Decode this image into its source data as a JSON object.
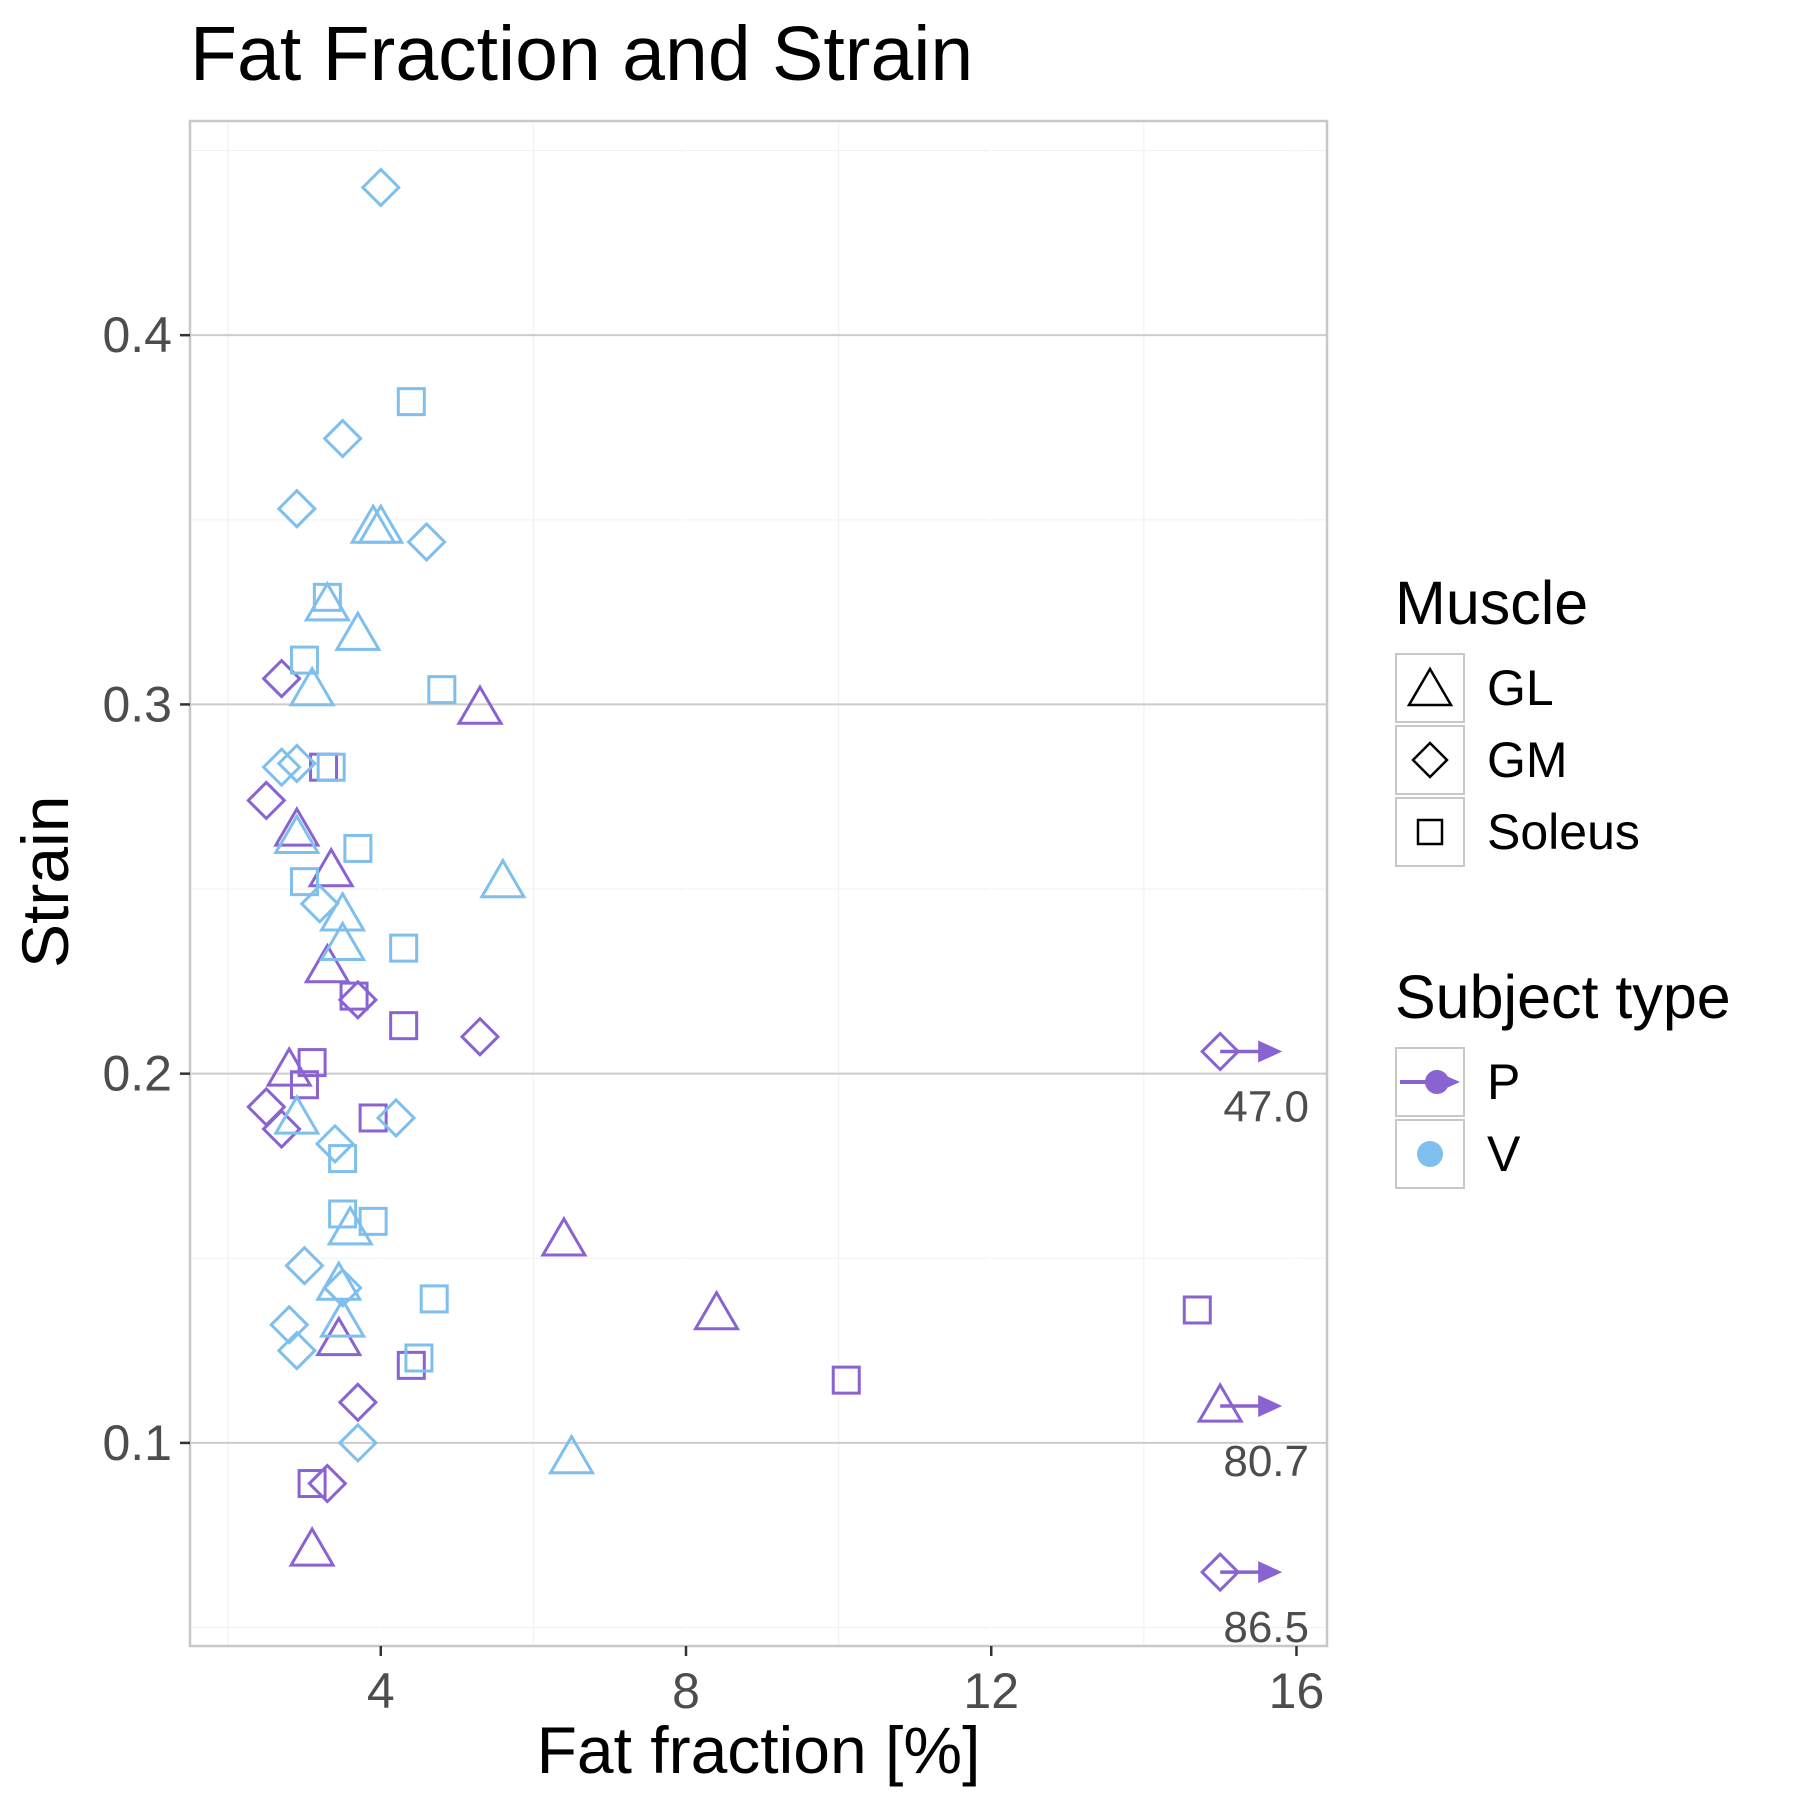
{
  "chart_data": {
    "type": "scatter",
    "title": "Fat Fraction and Strain",
    "xlabel": "Fat fraction [%]",
    "ylabel": "Strain",
    "xlim": [
      1.5,
      16.4
    ],
    "ylim": [
      0.045,
      0.458
    ],
    "x_ticks": [
      4,
      8,
      12,
      16
    ],
    "x_tick_labels": [
      "4",
      "8",
      "12",
      "16"
    ],
    "y_ticks": [
      0.1,
      0.2,
      0.3,
      0.4
    ],
    "y_tick_labels": [
      "0.1",
      "0.2",
      "0.3",
      "0.4"
    ],
    "grid": true,
    "legend_position": "right",
    "colors": {
      "P": "#8a63d2",
      "V": "#7fbfed"
    },
    "legend": {
      "muscle_title": "Muscle",
      "muscle_items": [
        {
          "label": "GL",
          "shape": "triangle"
        },
        {
          "label": "GM",
          "shape": "diamond"
        },
        {
          "label": "Soleus",
          "shape": "square"
        }
      ],
      "subject_title": "Subject type",
      "subject_items": [
        {
          "label": "P",
          "color": "#8a63d2"
        },
        {
          "label": "V",
          "color": "#7fbfed"
        }
      ]
    },
    "series": [
      {
        "name": "P",
        "color": "#8a63d2",
        "points": [
          {
            "x": 2.7,
            "y": 0.307,
            "muscle": "GM"
          },
          {
            "x": 2.5,
            "y": 0.274,
            "muscle": "GM"
          },
          {
            "x": 2.9,
            "y": 0.266,
            "muscle": "GL"
          },
          {
            "x": 3.25,
            "y": 0.283,
            "muscle": "Soleus"
          },
          {
            "x": 3.35,
            "y": 0.255,
            "muscle": "GL"
          },
          {
            "x": 5.3,
            "y": 0.299,
            "muscle": "GL"
          },
          {
            "x": 3.3,
            "y": 0.229,
            "muscle": "GL"
          },
          {
            "x": 3.65,
            "y": 0.221,
            "muscle": "Soleus"
          },
          {
            "x": 3.7,
            "y": 0.22,
            "muscle": "GM"
          },
          {
            "x": 4.3,
            "y": 0.213,
            "muscle": "Soleus"
          },
          {
            "x": 5.3,
            "y": 0.21,
            "muscle": "GM"
          },
          {
            "x": 2.8,
            "y": 0.201,
            "muscle": "GL"
          },
          {
            "x": 3.1,
            "y": 0.203,
            "muscle": "Soleus"
          },
          {
            "x": 3.0,
            "y": 0.197,
            "muscle": "Soleus"
          },
          {
            "x": 2.5,
            "y": 0.191,
            "muscle": "GM"
          },
          {
            "x": 2.7,
            "y": 0.185,
            "muscle": "GM"
          },
          {
            "x": 3.9,
            "y": 0.188,
            "muscle": "Soleus"
          },
          {
            "x": 6.4,
            "y": 0.155,
            "muscle": "GL"
          },
          {
            "x": 8.4,
            "y": 0.135,
            "muscle": "GL"
          },
          {
            "x": 3.45,
            "y": 0.128,
            "muscle": "GL"
          },
          {
            "x": 4.4,
            "y": 0.121,
            "muscle": "Soleus"
          },
          {
            "x": 10.1,
            "y": 0.117,
            "muscle": "Soleus"
          },
          {
            "x": 14.7,
            "y": 0.136,
            "muscle": "Soleus"
          },
          {
            "x": 3.7,
            "y": 0.111,
            "muscle": "GM"
          },
          {
            "x": 3.1,
            "y": 0.089,
            "muscle": "Soleus"
          },
          {
            "x": 3.3,
            "y": 0.089,
            "muscle": "GM"
          },
          {
            "x": 3.1,
            "y": 0.071,
            "muscle": "GL"
          }
        ]
      },
      {
        "name": "V",
        "color": "#7fbfed",
        "points": [
          {
            "x": 4.0,
            "y": 0.44,
            "muscle": "GM"
          },
          {
            "x": 4.4,
            "y": 0.382,
            "muscle": "Soleus"
          },
          {
            "x": 3.5,
            "y": 0.372,
            "muscle": "GM"
          },
          {
            "x": 2.9,
            "y": 0.353,
            "muscle": "GM"
          },
          {
            "x": 3.9,
            "y": 0.348,
            "muscle": "GL"
          },
          {
            "x": 4.0,
            "y": 0.348,
            "muscle": "GL"
          },
          {
            "x": 4.6,
            "y": 0.344,
            "muscle": "GM"
          },
          {
            "x": 3.3,
            "y": 0.329,
            "muscle": "Soleus"
          },
          {
            "x": 3.3,
            "y": 0.327,
            "muscle": "GL"
          },
          {
            "x": 3.7,
            "y": 0.319,
            "muscle": "GL"
          },
          {
            "x": 3.0,
            "y": 0.312,
            "muscle": "Soleus"
          },
          {
            "x": 3.1,
            "y": 0.304,
            "muscle": "GL"
          },
          {
            "x": 4.8,
            "y": 0.304,
            "muscle": "Soleus"
          },
          {
            "x": 2.7,
            "y": 0.283,
            "muscle": "GM"
          },
          {
            "x": 2.9,
            "y": 0.284,
            "muscle": "GM"
          },
          {
            "x": 3.35,
            "y": 0.283,
            "muscle": "Soleus"
          },
          {
            "x": 2.9,
            "y": 0.264,
            "muscle": "GL"
          },
          {
            "x": 3.7,
            "y": 0.261,
            "muscle": "Soleus"
          },
          {
            "x": 5.6,
            "y": 0.252,
            "muscle": "GL"
          },
          {
            "x": 3.0,
            "y": 0.252,
            "muscle": "Soleus"
          },
          {
            "x": 3.2,
            "y": 0.246,
            "muscle": "GM"
          },
          {
            "x": 3.5,
            "y": 0.243,
            "muscle": "GL"
          },
          {
            "x": 3.5,
            "y": 0.235,
            "muscle": "GL"
          },
          {
            "x": 4.3,
            "y": 0.234,
            "muscle": "Soleus"
          },
          {
            "x": 2.9,
            "y": 0.188,
            "muscle": "GL"
          },
          {
            "x": 4.2,
            "y": 0.188,
            "muscle": "GM"
          },
          {
            "x": 3.4,
            "y": 0.181,
            "muscle": "GM"
          },
          {
            "x": 3.5,
            "y": 0.177,
            "muscle": "Soleus"
          },
          {
            "x": 3.5,
            "y": 0.162,
            "muscle": "Soleus"
          },
          {
            "x": 3.6,
            "y": 0.158,
            "muscle": "GL"
          },
          {
            "x": 3.9,
            "y": 0.16,
            "muscle": "Soleus"
          },
          {
            "x": 3.0,
            "y": 0.148,
            "muscle": "GM"
          },
          {
            "x": 3.45,
            "y": 0.143,
            "muscle": "GL"
          },
          {
            "x": 3.5,
            "y": 0.142,
            "muscle": "GM"
          },
          {
            "x": 4.7,
            "y": 0.139,
            "muscle": "Soleus"
          },
          {
            "x": 3.5,
            "y": 0.133,
            "muscle": "GL"
          },
          {
            "x": 2.8,
            "y": 0.132,
            "muscle": "GM"
          },
          {
            "x": 2.9,
            "y": 0.125,
            "muscle": "GM"
          },
          {
            "x": 4.5,
            "y": 0.123,
            "muscle": "Soleus"
          },
          {
            "x": 3.7,
            "y": 0.1,
            "muscle": "GM"
          },
          {
            "x": 6.5,
            "y": 0.096,
            "muscle": "GL"
          }
        ]
      }
    ],
    "offscale": [
      {
        "x": 15.0,
        "y": 0.206,
        "muscle": "GM",
        "label": "47.0"
      },
      {
        "x": 15.0,
        "y": 0.11,
        "muscle": "GL",
        "label": "80.7"
      },
      {
        "x": 15.0,
        "y": 0.065,
        "muscle": "GM",
        "label": "86.5"
      }
    ]
  }
}
